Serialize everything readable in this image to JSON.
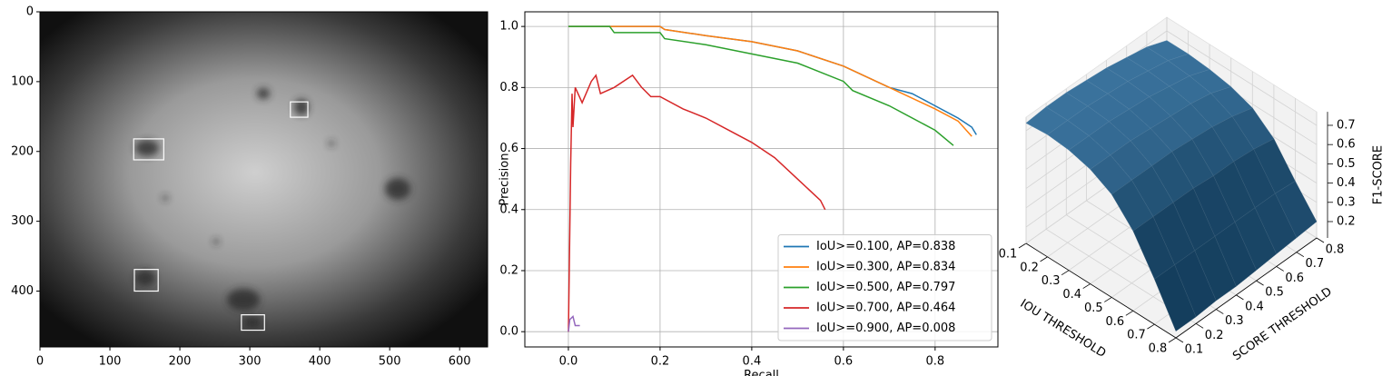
{
  "chart_data": [
    {
      "type": "image",
      "xlim": [
        0,
        640
      ],
      "ylim": [
        480,
        0
      ],
      "xticks": [
        0,
        100,
        200,
        300,
        400,
        500,
        600
      ],
      "yticks": [
        0,
        100,
        200,
        300,
        400
      ],
      "box_color": "#ffffff",
      "boxes": [
        [
          134,
          182,
          177,
          212
        ],
        [
          358,
          129,
          383,
          151
        ],
        [
          135,
          369,
          169,
          400
        ],
        [
          288,
          434,
          321,
          456
        ]
      ]
    },
    {
      "type": "line",
      "xlabel": "Recall",
      "ylabel": "Precision",
      "xlim": [
        -0.095,
        0.937
      ],
      "ylim": [
        -0.05,
        1.048
      ],
      "xticks": [
        {
          "value": 0,
          "label": "0.0"
        },
        {
          "value": 0.2,
          "label": "0.2"
        },
        {
          "value": 0.4,
          "label": "0.4"
        },
        {
          "value": 0.6,
          "label": "0.6"
        },
        {
          "value": 0.8,
          "label": "0.8"
        }
      ],
      "yticks": [
        {
          "value": 0,
          "label": "0.0"
        },
        {
          "value": 0.2,
          "label": "0.2"
        },
        {
          "value": 0.4,
          "label": "0.4"
        },
        {
          "value": 0.6,
          "label": "0.6"
        },
        {
          "value": 0.8,
          "label": "0.8"
        },
        {
          "value": 1,
          "label": "1.0"
        }
      ],
      "grid": true,
      "legend": "lower right",
      "series": [
        {
          "name": "IoU>=0.100, AP=0.838",
          "color": "#1f77b4",
          "x": [
            0,
            0.2,
            0.21,
            0.3,
            0.4,
            0.5,
            0.6,
            0.7,
            0.75,
            0.8,
            0.85,
            0.88,
            0.89
          ],
          "values": [
            1,
            1,
            0.99,
            0.97,
            0.95,
            0.92,
            0.87,
            0.8,
            0.78,
            0.74,
            0.7,
            0.67,
            0.645
          ]
        },
        {
          "name": "IoU>=0.300, AP=0.834",
          "color": "#ff7f0e",
          "x": [
            0,
            0.2,
            0.21,
            0.3,
            0.4,
            0.5,
            0.6,
            0.7,
            0.8,
            0.85,
            0.88
          ],
          "values": [
            1,
            1,
            0.99,
            0.97,
            0.95,
            0.92,
            0.87,
            0.8,
            0.73,
            0.69,
            0.64
          ]
        },
        {
          "name": "IoU>=0.500, AP=0.797",
          "color": "#2ca02c",
          "x": [
            0,
            0.09,
            0.1,
            0.2,
            0.21,
            0.3,
            0.4,
            0.5,
            0.6,
            0.62,
            0.7,
            0.8,
            0.84
          ],
          "values": [
            1,
            1,
            0.98,
            0.98,
            0.96,
            0.94,
            0.91,
            0.88,
            0.82,
            0.79,
            0.74,
            0.66,
            0.61
          ]
        },
        {
          "name": "IoU>=0.700, AP=0.464",
          "color": "#d62728",
          "x": [
            0,
            0.005,
            0.008,
            0.01,
            0.015,
            0.03,
            0.05,
            0.06,
            0.07,
            0.1,
            0.14,
            0.16,
            0.18,
            0.2,
            0.25,
            0.3,
            0.35,
            0.4,
            0.45,
            0.5,
            0.55,
            0.56
          ],
          "values": [
            0,
            0.55,
            0.78,
            0.67,
            0.8,
            0.75,
            0.82,
            0.84,
            0.78,
            0.8,
            0.84,
            0.8,
            0.77,
            0.77,
            0.73,
            0.7,
            0.66,
            0.62,
            0.57,
            0.5,
            0.43,
            0.4
          ]
        },
        {
          "name": "IoU>=0.900, AP=0.008",
          "color": "#9467bd",
          "x": [
            0,
            0.003,
            0.01,
            0.015,
            0.025
          ],
          "values": [
            0,
            0.04,
            0.05,
            0.02,
            0.02
          ]
        }
      ]
    },
    {
      "type": "surface",
      "xlabel": "IOU THRESHOLD",
      "ylabel": "SCORE THRESHOLD",
      "zlabel": "F1-SCORE",
      "color": "#1f5f8f",
      "xlim": [
        0.1,
        0.8
      ],
      "ylim": [
        0.1,
        0.8
      ],
      "zlim": [
        0.115,
        0.77
      ],
      "xticks": [
        0.1,
        0.2,
        0.3,
        0.4,
        0.5,
        0.6,
        0.7,
        0.8
      ],
      "yticks": [
        0.1,
        0.2,
        0.3,
        0.4,
        0.5,
        0.6,
        0.7,
        0.8
      ],
      "zticks": [
        0.2,
        0.3,
        0.4,
        0.5,
        0.6,
        0.7
      ],
      "x": [
        0.1,
        0.2,
        0.3,
        0.4,
        0.5,
        0.6,
        0.7,
        0.8
      ],
      "y": [
        0.1,
        0.2,
        0.3,
        0.4,
        0.5,
        0.6,
        0.7,
        0.8
      ],
      "z": [
        [
          0.74,
          0.75,
          0.75,
          0.74,
          0.73,
          0.71,
          0.69,
          0.65
        ],
        [
          0.75,
          0.75,
          0.75,
          0.74,
          0.73,
          0.71,
          0.69,
          0.65
        ],
        [
          0.74,
          0.74,
          0.74,
          0.73,
          0.72,
          0.7,
          0.68,
          0.64
        ],
        [
          0.71,
          0.71,
          0.71,
          0.7,
          0.69,
          0.68,
          0.66,
          0.62
        ],
        [
          0.65,
          0.65,
          0.65,
          0.65,
          0.64,
          0.63,
          0.61,
          0.58
        ],
        [
          0.53,
          0.53,
          0.53,
          0.53,
          0.52,
          0.52,
          0.51,
          0.49
        ],
        [
          0.35,
          0.35,
          0.35,
          0.35,
          0.35,
          0.35,
          0.35,
          0.34
        ],
        [
          0.15,
          0.15,
          0.16,
          0.16,
          0.17,
          0.18,
          0.19,
          0.2
        ]
      ]
    }
  ]
}
